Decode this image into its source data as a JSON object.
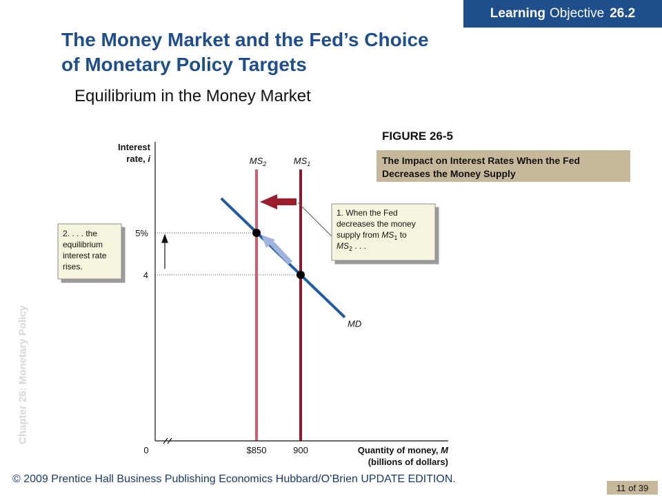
{
  "learning_objective": {
    "prefix": "Learning",
    "middle": "Objective",
    "number": "26.2"
  },
  "slide": {
    "title_line1": "The Money Market and the Fed’s Choice",
    "title_line2": "of Monetary Policy Targets",
    "subtitle": "Equilibrium in the Money Market"
  },
  "figure": {
    "label": "FIGURE 26-5",
    "caption": "The Impact on Interest Rates When the Fed Decreases the Money Supply"
  },
  "sidebar_label": "Chapter 26: Monetary Policy",
  "footer": {
    "text": "© 2009 Prentice Hall Business Publishing Economics  Hubbard/O’Brien UPDATE EDITION.",
    "page_current": "11",
    "page_of": "of 39"
  },
  "colors": {
    "badge_bg": "#1f4e8c",
    "title": "#1f4e8c",
    "caption_bg": "#c8b89b",
    "md": "#1f5aa6",
    "ms1": "#8b1a2b",
    "ms2": "#c8636d",
    "callout_bg": "#f6f4dc",
    "arrow_red": "#9b1c2c",
    "arrow_blue": "#9fb4dd"
  },
  "chart_data": {
    "type": "line",
    "y_axis": {
      "line1": "Interest",
      "line2_prefix": "rate, ",
      "line2_var": "i"
    },
    "x_axis": {
      "line1_prefix": "Quantity of money, ",
      "line1_var": "M",
      "line2": "(billions of dollars)"
    },
    "x_ticks": [
      {
        "value": 850,
        "label": "$850"
      },
      {
        "value": 900,
        "label": "900"
      }
    ],
    "y_ticks": [
      {
        "value": 5,
        "label": "5%"
      },
      {
        "value": 4,
        "label": "4"
      }
    ],
    "origin_label": "0",
    "axis_break": true,
    "series": [
      {
        "name": "MD",
        "label_main": "MD",
        "kind": "demand",
        "x": [
          810,
          900,
          950
        ],
        "y": [
          5.82,
          4,
          2.99
        ]
      },
      {
        "name": "MS1",
        "label_main": "MS",
        "label_sub": "1",
        "kind": "vertical",
        "x_value": 900
      },
      {
        "name": "MS2",
        "label_main": "MS",
        "label_sub": "2",
        "kind": "vertical",
        "x_value": 850
      }
    ],
    "equilibrium_points": [
      {
        "x": 850,
        "y": 5,
        "name": "new equilibrium"
      },
      {
        "x": 900,
        "y": 4,
        "name": "initial equilibrium"
      }
    ],
    "annotations": [
      {
        "id": "callout_left",
        "lines": [
          "2. . . . the",
          "equilibrium",
          "interest rate",
          "rises."
        ]
      },
      {
        "id": "callout_right",
        "line1": "1. When the Fed",
        "line2": "decreases the money",
        "line3_prefix": "supply from ",
        "line3_var": "MS",
        "line3_sub": "1",
        "line3_suffix": " to",
        "line4_var": "MS",
        "line4_sub": "2",
        "line4_suffix": " . . ."
      }
    ]
  }
}
